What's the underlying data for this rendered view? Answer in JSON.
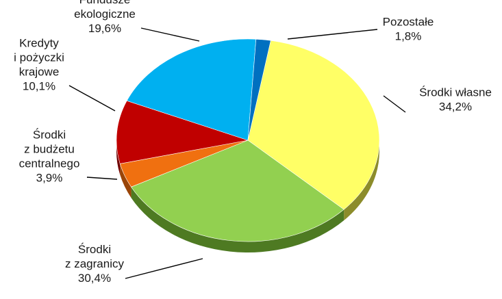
{
  "chart_data": {
    "type": "pie",
    "three_d": true,
    "title": "",
    "start_angle_deg": -80,
    "direction": "clockwise",
    "slices": [
      {
        "label": [
          "Środki własne"
        ],
        "value_label": "34,2%",
        "value": 34.2,
        "color": "#FFFF66",
        "side_color": "#8C8C2A"
      },
      {
        "label": [
          "Środki",
          "z zagranicy"
        ],
        "value_label": "30,4%",
        "value": 30.4,
        "color": "#92D050",
        "side_color": "#4E7A22"
      },
      {
        "label": [
          "Środki",
          "z budżetu",
          "centralnego"
        ],
        "value_label": "3,9%",
        "value": 3.9,
        "color": "#F07010",
        "side_color": "#9A4508"
      },
      {
        "label": [
          "Kredyty",
          "i pożyczki",
          "krajowe"
        ],
        "value_label": "10,1%",
        "value": 10.1,
        "color": "#C00000",
        "side_color": "#700000"
      },
      {
        "label": [
          "Fundusze",
          "ekologiczne"
        ],
        "value_label": "19,6%",
        "value": 19.6,
        "color": "#00B0F0",
        "side_color": "#006A94"
      },
      {
        "label": [
          "Pozostałe"
        ],
        "value_label": "1,8%",
        "value": 1.8,
        "color": "#0070C0",
        "side_color": "#003F70"
      }
    ],
    "legend": "none",
    "data_labels": "outside with leader lines"
  }
}
